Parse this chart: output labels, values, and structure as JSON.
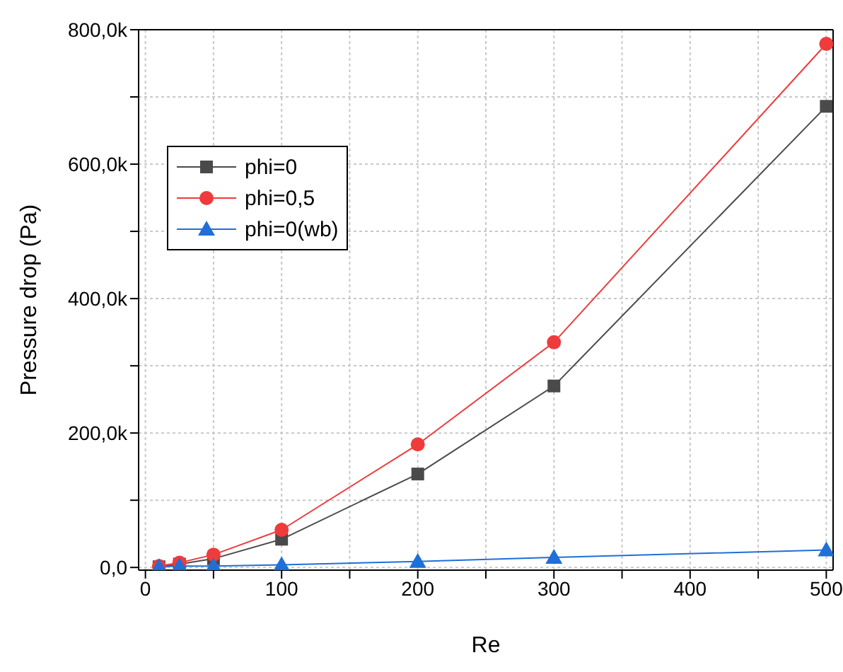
{
  "chart_data": {
    "type": "line",
    "xlabel": "Re",
    "ylabel": "Pressure drop (Pa)",
    "xlim": [
      -5,
      505
    ],
    "ylim": [
      -4000,
      800000
    ],
    "xticks": [
      0,
      {
        "value": 50,
        "label": null
      },
      100,
      {
        "value": 150,
        "label": null
      },
      200,
      {
        "value": 250,
        "label": null
      },
      300,
      {
        "value": 350,
        "label": null
      },
      400,
      {
        "value": 450,
        "label": null
      },
      500
    ],
    "yticks": [
      {
        "value": 0,
        "label": "0,0"
      },
      {
        "value": 100000,
        "label": null
      },
      {
        "value": 200000,
        "label": "200,0k"
      },
      {
        "value": 300000,
        "label": null
      },
      {
        "value": 400000,
        "label": "400,0k"
      },
      {
        "value": 500000,
        "label": null
      },
      {
        "value": 600000,
        "label": "600,0k"
      },
      {
        "value": 700000,
        "label": null
      },
      {
        "value": 800000,
        "label": "800,0k"
      }
    ],
    "grid": true,
    "legend": "top left",
    "line_style": "solid",
    "x": [
      10,
      25,
      50,
      100,
      200,
      300,
      500
    ],
    "series": [
      {
        "name": "phi=0",
        "color": "#4a4a4a",
        "marker": "square",
        "values": [
          1000,
          5000,
          13000,
          42000,
          139000,
          270000,
          686000
        ]
      },
      {
        "name": "phi=0,5",
        "color": "#ef3b3b",
        "marker": "circle",
        "values": [
          2000,
          7000,
          19000,
          56000,
          183000,
          335000,
          779000
        ]
      },
      {
        "name": "phi=0(wb)",
        "color": "#1f6fd8",
        "marker": "triangle",
        "values": [
          1000,
          2000,
          2000,
          4000,
          9000,
          15000,
          26000
        ]
      }
    ]
  }
}
